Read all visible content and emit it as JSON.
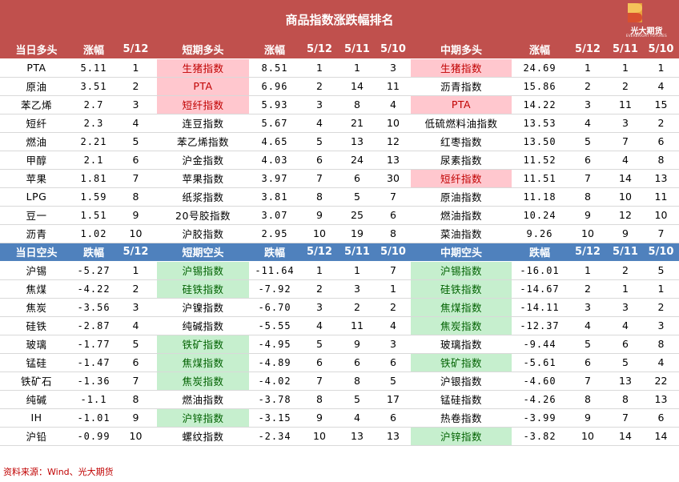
{
  "title": "商品指数涨跌幅排名",
  "logo": {
    "name": "光大期货",
    "sub": "EVERBRIGHT FUTURES"
  },
  "source": "资料来源：Wind、光大期货",
  "long_header": [
    "当日多头",
    "涨幅",
    "5/12",
    "短期多头",
    "涨幅",
    "5/12",
    "5/11",
    "5/10",
    "中期多头",
    "涨幅",
    "5/12",
    "5/11",
    "5/10"
  ],
  "long_rows": [
    {
      "c": [
        "PTA",
        "5.11",
        "1",
        "生猪指数",
        "8.51",
        "1",
        "1",
        "3",
        "生猪指数",
        "24.69",
        "1",
        "1",
        "1"
      ],
      "hl": [
        3,
        8
      ]
    },
    {
      "c": [
        "原油",
        "3.51",
        "2",
        "PTA",
        "6.96",
        "2",
        "14",
        "11",
        "沥青指数",
        "15.86",
        "2",
        "2",
        "4"
      ],
      "hl": [
        3
      ]
    },
    {
      "c": [
        "苯乙烯",
        "2.7",
        "3",
        "短纤指数",
        "5.93",
        "3",
        "8",
        "4",
        "PTA",
        "14.22",
        "3",
        "11",
        "15"
      ],
      "hl": [
        3,
        8
      ]
    },
    {
      "c": [
        "短纤",
        "2.3",
        "4",
        "连豆指数",
        "5.67",
        "4",
        "21",
        "10",
        "低硫燃料油指数",
        "13.53",
        "4",
        "3",
        "2"
      ],
      "hl": []
    },
    {
      "c": [
        "燃油",
        "2.21",
        "5",
        "苯乙烯指数",
        "4.65",
        "5",
        "13",
        "12",
        "红枣指数",
        "13.50",
        "5",
        "7",
        "6"
      ],
      "hl": []
    },
    {
      "c": [
        "甲醇",
        "2.1",
        "6",
        "沪金指数",
        "4.03",
        "6",
        "24",
        "13",
        "尿素指数",
        "11.52",
        "6",
        "4",
        "8"
      ],
      "hl": []
    },
    {
      "c": [
        "苹果",
        "1.81",
        "7",
        "苹果指数",
        "3.97",
        "7",
        "6",
        "30",
        "短纤指数",
        "11.51",
        "7",
        "14",
        "13"
      ],
      "hl": [
        8
      ]
    },
    {
      "c": [
        "LPG",
        "1.59",
        "8",
        "纸浆指数",
        "3.81",
        "8",
        "5",
        "7",
        "原油指数",
        "11.18",
        "8",
        "10",
        "11"
      ],
      "hl": []
    },
    {
      "c": [
        "豆一",
        "1.51",
        "9",
        "20号胶指数",
        "3.07",
        "9",
        "25",
        "6",
        "燃油指数",
        "10.24",
        "9",
        "12",
        "10"
      ],
      "hl": []
    },
    {
      "c": [
        "沥青",
        "1.02",
        "10",
        "沪胶指数",
        "2.95",
        "10",
        "19",
        "8",
        "菜油指数",
        "9.26",
        "10",
        "9",
        "7"
      ],
      "hl": []
    }
  ],
  "short_header": [
    "当日空头",
    "跌幅",
    "5/12",
    "短期空头",
    "跌幅",
    "5/12",
    "5/11",
    "5/10",
    "中期空头",
    "跌幅",
    "5/12",
    "5/11",
    "5/10"
  ],
  "short_rows": [
    {
      "c": [
        "沪锡",
        "-5.27",
        "1",
        "沪锡指数",
        "-11.64",
        "1",
        "1",
        "7",
        "沪锡指数",
        "-16.01",
        "1",
        "2",
        "5"
      ],
      "hl": [
        3,
        8
      ]
    },
    {
      "c": [
        "焦煤",
        "-4.22",
        "2",
        "硅铁指数",
        "-7.92",
        "2",
        "3",
        "1",
        "硅铁指数",
        "-14.67",
        "2",
        "1",
        "1"
      ],
      "hl": [
        3,
        8
      ]
    },
    {
      "c": [
        "焦炭",
        "-3.56",
        "3",
        "沪镍指数",
        "-6.70",
        "3",
        "2",
        "2",
        "焦煤指数",
        "-14.11",
        "3",
        "3",
        "2"
      ],
      "hl": [
        8
      ]
    },
    {
      "c": [
        "硅铁",
        "-2.87",
        "4",
        "纯碱指数",
        "-5.55",
        "4",
        "11",
        "4",
        "焦炭指数",
        "-12.37",
        "4",
        "4",
        "3"
      ],
      "hl": [
        8
      ]
    },
    {
      "c": [
        "玻璃",
        "-1.77",
        "5",
        "铁矿指数",
        "-4.95",
        "5",
        "9",
        "3",
        "玻璃指数",
        "-9.44",
        "5",
        "6",
        "8"
      ],
      "hl": [
        3
      ]
    },
    {
      "c": [
        "锰硅",
        "-1.47",
        "6",
        "焦煤指数",
        "-4.89",
        "6",
        "6",
        "6",
        "铁矿指数",
        "-5.61",
        "6",
        "5",
        "4"
      ],
      "hl": [
        3,
        8
      ]
    },
    {
      "c": [
        "铁矿石",
        "-1.36",
        "7",
        "焦炭指数",
        "-4.02",
        "7",
        "8",
        "5",
        "沪银指数",
        "-4.60",
        "7",
        "13",
        "22"
      ],
      "hl": [
        3
      ]
    },
    {
      "c": [
        "纯碱",
        "-1.1",
        "8",
        "燃油指数",
        "-3.78",
        "8",
        "5",
        "17",
        "锰硅指数",
        "-4.26",
        "8",
        "8",
        "13"
      ],
      "hl": []
    },
    {
      "c": [
        "IH",
        "-1.01",
        "9",
        "沪锌指数",
        "-3.15",
        "9",
        "4",
        "6",
        "热卷指数",
        "-3.99",
        "9",
        "7",
        "6"
      ],
      "hl": [
        3
      ]
    },
    {
      "c": [
        "沪铅",
        "-0.99",
        "10",
        "螺纹指数",
        "-2.34",
        "10",
        "13",
        "13",
        "沪锌指数",
        "-3.82",
        "10",
        "14",
        "14"
      ],
      "hl": [
        8
      ]
    }
  ]
}
